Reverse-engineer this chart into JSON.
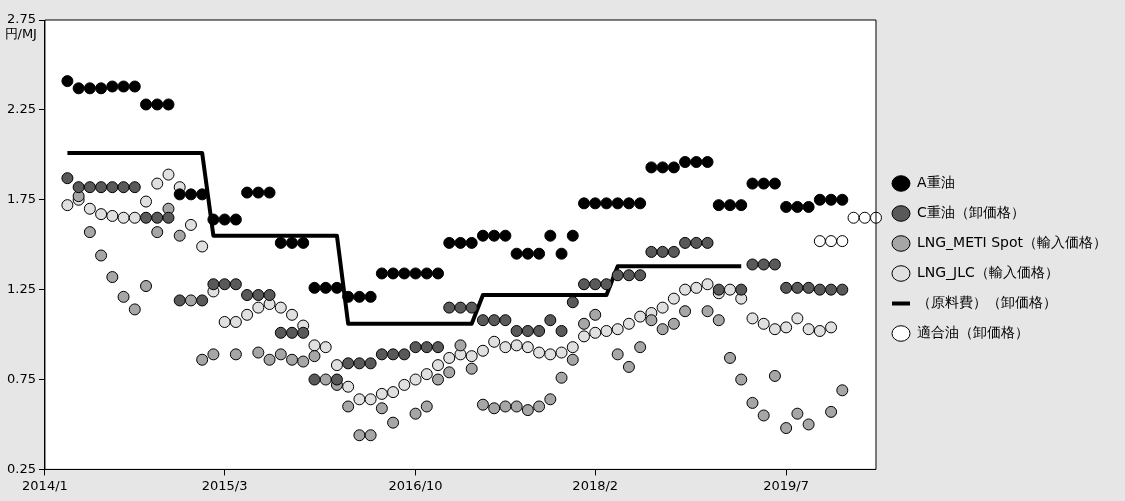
{
  "chart_data": {
    "type": "scatter",
    "ylabel": "円/MJ",
    "categories": [
      "2014/1",
      null,
      null,
      null,
      null,
      null,
      null,
      null,
      null,
      null,
      null,
      null,
      null,
      null,
      null,
      null,
      "2015/3",
      null,
      null,
      null,
      null,
      null,
      null,
      null,
      null,
      null,
      null,
      null,
      null,
      null,
      null,
      null,
      null,
      "2016/10",
      null,
      null,
      null,
      null,
      null,
      null,
      null,
      null,
      null,
      null,
      null,
      null,
      null,
      null,
      null,
      "2018/2",
      null,
      null,
      null,
      null,
      null,
      null,
      null,
      null,
      null,
      null,
      null,
      null,
      null,
      null,
      null,
      null,
      "2019/7",
      null,
      null,
      null,
      null,
      null,
      null,
      null,
      null
    ],
    "ylim": [
      0.25,
      2.75
    ],
    "yticks": [
      0.25,
      0.75,
      1.25,
      1.75,
      2.25,
      2.75
    ],
    "legend": "right",
    "marker": "circle",
    "series": [
      {
        "name": "A重油",
        "color": "#000000",
        "values": [
          null,
          null,
          2.41,
          2.37,
          2.37,
          2.37,
          2.38,
          2.38,
          2.38,
          2.28,
          2.28,
          2.28,
          1.78,
          1.78,
          1.78,
          1.64,
          1.64,
          1.64,
          1.79,
          1.79,
          1.79,
          1.51,
          1.51,
          1.51,
          1.26,
          1.26,
          1.26,
          1.21,
          1.21,
          1.21,
          1.34,
          1.34,
          1.34,
          1.34,
          1.34,
          1.34,
          1.51,
          1.51,
          1.51,
          1.55,
          1.55,
          1.55,
          1.45,
          1.45,
          1.45,
          1.55,
          1.45,
          1.55,
          1.73,
          1.73,
          1.73,
          1.73,
          1.73,
          1.73,
          1.93,
          1.93,
          1.93,
          1.96,
          1.96,
          1.96,
          1.72,
          1.72,
          1.72,
          1.84,
          1.84,
          1.84,
          1.71,
          1.71,
          1.71,
          1.75,
          1.75,
          1.75,
          null,
          null,
          null
        ]
      },
      {
        "name": "C重油（卸価格）",
        "color": "#595959",
        "values": [
          null,
          null,
          1.87,
          1.82,
          1.82,
          1.82,
          1.82,
          1.82,
          1.82,
          1.65,
          1.65,
          1.65,
          1.19,
          null,
          1.19,
          1.28,
          1.28,
          1.28,
          1.22,
          1.22,
          1.22,
          1.01,
          1.01,
          1.01,
          0.75,
          null,
          0.75,
          0.84,
          0.84,
          0.84,
          0.89,
          0.89,
          0.89,
          0.93,
          0.93,
          0.93,
          1.15,
          1.15,
          1.15,
          1.08,
          1.08,
          1.08,
          1.02,
          1.02,
          1.02,
          1.08,
          1.02,
          1.18,
          1.28,
          1.28,
          1.28,
          1.33,
          1.33,
          1.33,
          1.46,
          1.46,
          1.46,
          1.51,
          1.51,
          1.51,
          1.25,
          null,
          1.25,
          1.39,
          1.39,
          1.39,
          1.26,
          1.26,
          1.26,
          1.25,
          1.25,
          1.25,
          null,
          null,
          null
        ]
      },
      {
        "name": "LNG_METI Spot（輸入価格）",
        "color": "#a6a6a6",
        "values": [
          null,
          null,
          null,
          1.77,
          1.57,
          1.44,
          1.32,
          1.21,
          1.14,
          1.27,
          1.57,
          1.7,
          1.55,
          1.19,
          0.86,
          0.89,
          null,
          0.89,
          null,
          0.9,
          0.86,
          0.89,
          0.86,
          0.85,
          0.88,
          0.75,
          0.72,
          0.6,
          0.44,
          0.44,
          0.59,
          0.51,
          null,
          0.56,
          0.6,
          0.75,
          0.79,
          0.94,
          0.81,
          0.61,
          0.59,
          0.6,
          0.6,
          0.58,
          0.6,
          0.64,
          0.76,
          0.86,
          1.06,
          1.11,
          null,
          0.89,
          0.82,
          0.93,
          1.08,
          1.03,
          1.06,
          1.13,
          null,
          1.13,
          1.08,
          0.87,
          0.75,
          0.62,
          0.55,
          0.77,
          0.48,
          0.56,
          0.5,
          null,
          0.57,
          0.69,
          null,
          null,
          null
        ]
      },
      {
        "name": "LNG_JLC（輸入価格）",
        "color": "#e0e0e0",
        "values": [
          null,
          null,
          1.72,
          1.75,
          1.7,
          1.67,
          1.66,
          1.65,
          1.65,
          1.74,
          1.84,
          1.89,
          1.82,
          1.61,
          1.49,
          1.24,
          1.07,
          1.07,
          1.11,
          1.15,
          1.17,
          1.15,
          1.11,
          1.05,
          0.94,
          0.93,
          0.83,
          0.71,
          0.64,
          0.64,
          0.67,
          0.68,
          0.72,
          0.75,
          0.78,
          0.83,
          0.87,
          0.89,
          0.88,
          0.91,
          0.96,
          0.93,
          0.94,
          0.93,
          0.9,
          0.89,
          0.9,
          0.93,
          0.99,
          1.01,
          1.02,
          1.03,
          1.06,
          1.1,
          1.12,
          1.15,
          1.2,
          1.25,
          1.26,
          1.28,
          1.23,
          1.25,
          1.2,
          1.09,
          1.06,
          1.03,
          1.04,
          1.09,
          1.03,
          1.02,
          1.04,
          null,
          null,
          null,
          null
        ]
      },
      {
        "name": "（原料費）（卸価格）",
        "type": "line",
        "marker": "none",
        "color": "#000000",
        "values": [
          null,
          null,
          2.01,
          2.01,
          2.01,
          2.01,
          2.01,
          2.01,
          2.01,
          2.01,
          2.01,
          2.01,
          2.01,
          2.01,
          2.01,
          1.55,
          1.55,
          1.55,
          1.55,
          1.55,
          1.55,
          1.55,
          1.55,
          1.55,
          1.55,
          1.55,
          1.55,
          1.06,
          1.06,
          1.06,
          1.06,
          1.06,
          1.06,
          1.06,
          1.06,
          1.06,
          1.06,
          1.06,
          1.06,
          1.22,
          1.22,
          1.22,
          1.22,
          1.22,
          1.22,
          1.22,
          1.22,
          1.22,
          1.22,
          1.22,
          1.22,
          1.38,
          1.38,
          1.38,
          1.38,
          1.38,
          1.38,
          1.38,
          1.38,
          1.38,
          1.38,
          1.38,
          1.38,
          null,
          null,
          null,
          null,
          null,
          null,
          null,
          null,
          null,
          null,
          null,
          null
        ]
      },
      {
        "name": "適合油（卸価格）",
        "color": "#ffffff",
        "values": [
          null,
          null,
          null,
          null,
          null,
          null,
          null,
          null,
          null,
          null,
          null,
          null,
          null,
          null,
          null,
          null,
          null,
          null,
          null,
          null,
          null,
          null,
          null,
          null,
          null,
          null,
          null,
          null,
          null,
          null,
          null,
          null,
          null,
          null,
          null,
          null,
          null,
          null,
          null,
          null,
          null,
          null,
          null,
          null,
          null,
          null,
          null,
          null,
          null,
          null,
          null,
          null,
          null,
          null,
          null,
          null,
          null,
          null,
          null,
          null,
          null,
          null,
          null,
          null,
          null,
          null,
          null,
          null,
          null,
          1.52,
          1.52,
          1.52,
          1.65,
          1.65,
          1.65
        ]
      }
    ]
  }
}
